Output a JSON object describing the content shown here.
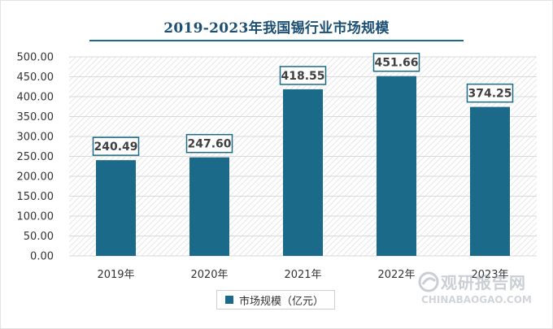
{
  "chart_data": {
    "type": "bar",
    "title": "2019-2023年我国锡行业市场规模",
    "categories": [
      "2019年",
      "2020年",
      "2021年",
      "2022年",
      "2023年"
    ],
    "series": [
      {
        "name": "市场规模（亿元）",
        "values": [
          240.49,
          247.6,
          418.55,
          451.66,
          374.25
        ]
      }
    ],
    "data_labels": [
      "240.49",
      "247.60",
      "418.55",
      "451.66",
      "374.25"
    ],
    "yticks": [
      "0.00",
      "50.00",
      "100.00",
      "150.00",
      "200.00",
      "250.00",
      "300.00",
      "350.00",
      "400.00",
      "450.00",
      "500.00"
    ],
    "ylim": [
      0,
      500
    ],
    "bar_color": "#1c6a8a",
    "legend_position": "bottom"
  },
  "watermark": {
    "name_cn": "观研报告网",
    "domain": "CHINABAOGAO.COM"
  }
}
